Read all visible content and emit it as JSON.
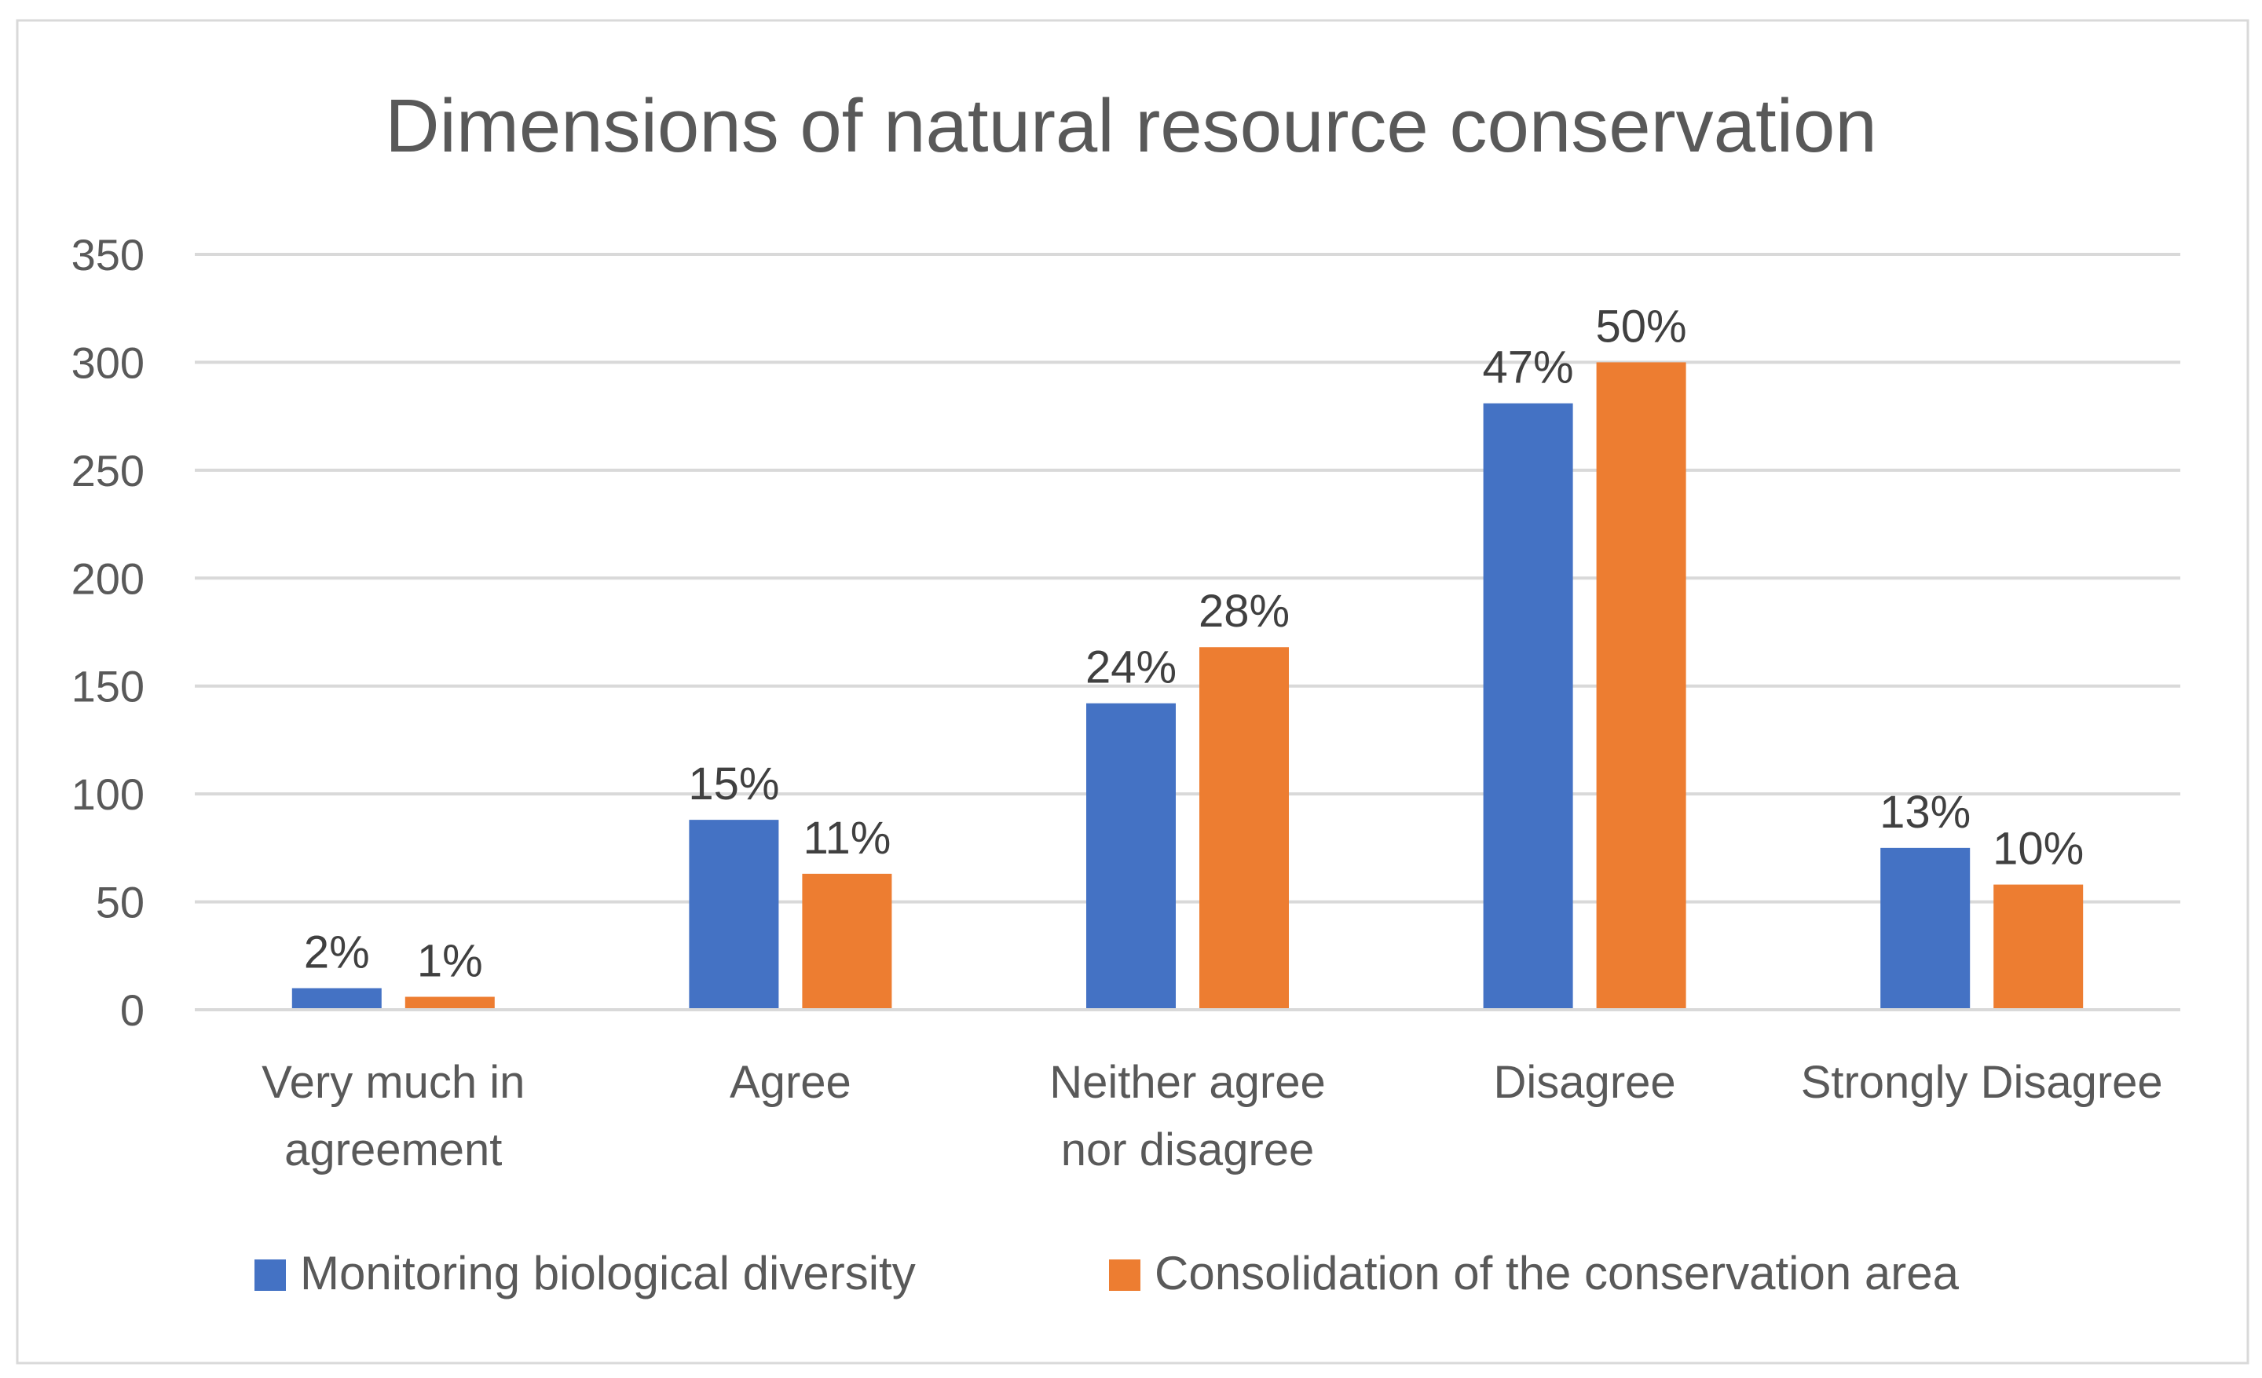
{
  "chart_data": {
    "type": "bar",
    "title": "Dimensions of natural resource conservation",
    "xlabel": "",
    "ylabel": "",
    "ylim": [
      0,
      350
    ],
    "yticks": [
      0,
      50,
      100,
      150,
      200,
      250,
      300,
      350
    ],
    "grid": true,
    "legend_position": "bottom",
    "categories": [
      [
        "Very much in",
        "agreement"
      ],
      [
        "Agree"
      ],
      [
        "Neither agree",
        "nor disagree"
      ],
      [
        "Disagree"
      ],
      [
        "Strongly Disagree"
      ]
    ],
    "series": [
      {
        "name": "Monitoring biological diversity",
        "color": "#4472C4",
        "values": [
          10,
          88,
          142,
          281,
          75
        ],
        "labels": [
          "2%",
          "15%",
          "24%",
          "47%",
          "13%"
        ]
      },
      {
        "name": "Consolidation of the conservation area",
        "color": "#ED7D31",
        "values": [
          6,
          63,
          168,
          300,
          58
        ],
        "labels": [
          "1%",
          "11%",
          "28%",
          "50%",
          "10%"
        ]
      }
    ]
  }
}
